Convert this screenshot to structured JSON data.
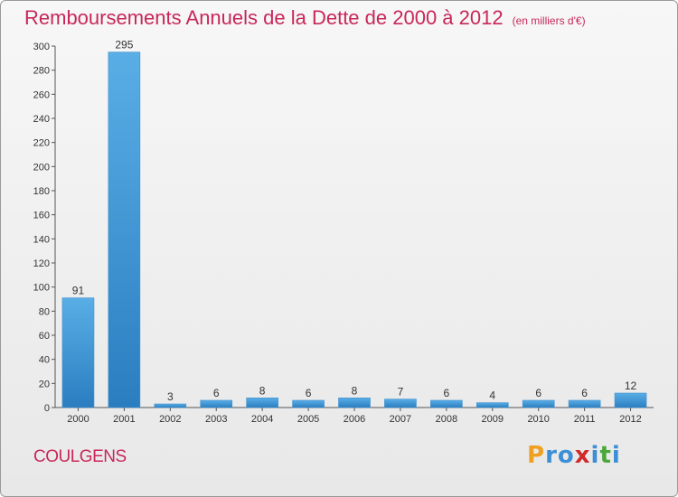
{
  "chart_data": {
    "type": "bar",
    "title": "Remboursements Annuels de la Dette de 2000 à 2012",
    "subtitle": "(en milliers d'€)",
    "xlabel": "",
    "ylabel": "",
    "categories": [
      "2000",
      "2001",
      "2002",
      "2003",
      "2004",
      "2005",
      "2006",
      "2007",
      "2008",
      "2009",
      "2010",
      "2011",
      "2012"
    ],
    "values": [
      91,
      295,
      3,
      6,
      8,
      6,
      8,
      7,
      6,
      4,
      6,
      6,
      12
    ],
    "ylim": [
      0,
      300
    ],
    "yticks": [
      0,
      20,
      40,
      60,
      80,
      100,
      120,
      140,
      160,
      180,
      200,
      220,
      240,
      260,
      280,
      300
    ],
    "grid": false,
    "legend": "none",
    "colors": {
      "bar_light": "#5aaee6",
      "bar_dark": "#2a7ec0",
      "title": "#c8275a",
      "axis": "#555555"
    }
  },
  "footer": {
    "commune": "COULGENS",
    "logo": "Proxiti",
    "logo_colors": [
      "#f0a020",
      "#3a8fd6",
      "#3a8fd6",
      "#d02a2a",
      "#3a8fd6",
      "#4aa83a",
      "#3a8fd6"
    ]
  }
}
